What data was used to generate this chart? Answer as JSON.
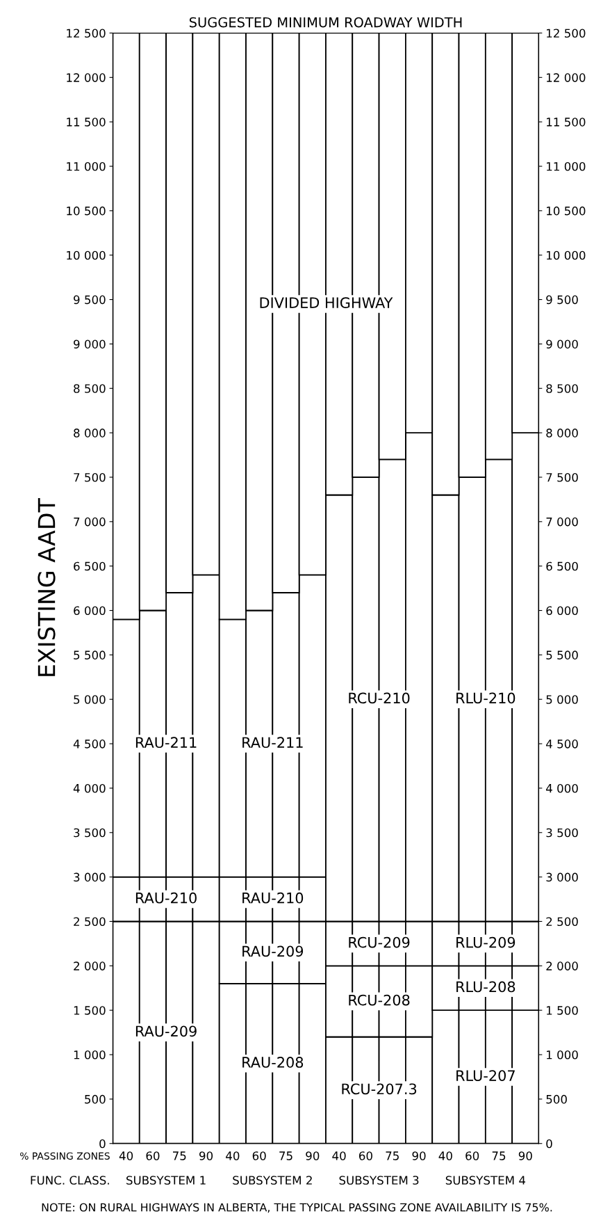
{
  "chart_data": {
    "type": "bar",
    "stacked": true,
    "title": "SUGGESTED MINIMUM ROADWAY WIDTH",
    "ylabel": "EXISTING AADT",
    "categories": [
      "40",
      "60",
      "75",
      "90",
      "40",
      "60",
      "75",
      "90",
      "40",
      "60",
      "75",
      "90",
      "40",
      "60",
      "75",
      "90"
    ],
    "series": [
      {
        "color": "#ffffff",
        "values": [
          2500,
          2500,
          2500,
          2500,
          1800,
          1800,
          1800,
          1800,
          1200,
          1200,
          1200,
          1200,
          1500,
          1500,
          1500,
          1500
        ],
        "value_labels": [
          null,
          "RAU-209",
          null,
          null,
          null,
          "RAU-208",
          null,
          null,
          null,
          "RCU-207.3",
          null,
          null,
          null,
          "RLU-207",
          null,
          null
        ]
      },
      {
        "color": "#ffffff",
        "values": [
          500,
          500,
          500,
          500,
          700,
          700,
          700,
          700,
          800,
          800,
          800,
          800,
          500,
          500,
          500,
          500
        ],
        "value_labels": [
          null,
          "RAU-210",
          null,
          null,
          null,
          "RAU-209",
          null,
          null,
          null,
          "RCU-208",
          null,
          null,
          null,
          "RLU-208",
          null,
          null
        ]
      },
      {
        "color": "#ffffff",
        "values": [
          2900,
          3000,
          3200,
          3400,
          500,
          500,
          500,
          500,
          500,
          500,
          500,
          500,
          500,
          500,
          500,
          500
        ],
        "value_labels": [
          null,
          "RAU-211",
          null,
          null,
          null,
          "RAU-210",
          null,
          null,
          null,
          "RCU-209",
          null,
          null,
          null,
          "RLU-209",
          null,
          null
        ]
      },
      {
        "color": "#ffffff",
        "values": [
          null,
          null,
          null,
          null,
          2900,
          3000,
          3200,
          3400,
          4800,
          5000,
          5200,
          5500,
          4800,
          5000,
          5200,
          5500
        ],
        "value_labels": [
          null,
          null,
          null,
          null,
          null,
          "RAU-211",
          null,
          null,
          null,
          "RCU-210",
          null,
          null,
          null,
          "RLU-210",
          null,
          null
        ]
      },
      {
        "color": "#ffffff",
        "values": [
          6600,
          6500,
          6300,
          6100,
          6600,
          6500,
          6300,
          6100,
          5200,
          5000,
          4800,
          4500,
          5200,
          5000,
          4800,
          4500
        ],
        "value_labels": [
          null,
          null,
          null,
          null,
          null,
          null,
          null,
          "DIVIDED HIGHWAY",
          null,
          null,
          null,
          null,
          null,
          null,
          null,
          null
        ]
      }
    ],
    "ylim": [
      0,
      12500
    ],
    "yticks": [
      0,
      500,
      {
        "value": 1000,
        "label": "1 000"
      },
      {
        "value": 1500,
        "label": "1 500"
      },
      {
        "value": 2000,
        "label": "2 000"
      },
      {
        "value": 2500,
        "label": "2 500"
      },
      {
        "value": 3000,
        "label": "3 000"
      },
      {
        "value": 3500,
        "label": "3 500"
      },
      {
        "value": 4000,
        "label": "4 000"
      },
      {
        "value": 4500,
        "label": "4 500"
      },
      {
        "value": 5000,
        "label": "5 000"
      },
      {
        "value": 5500,
        "label": "5 500"
      },
      {
        "value": 6000,
        "label": "6 000"
      },
      {
        "value": 6500,
        "label": "6 500"
      },
      {
        "value": 7000,
        "label": "7 000"
      },
      {
        "value": 7500,
        "label": "7 500"
      },
      {
        "value": 8000,
        "label": "8 000"
      },
      {
        "value": 8500,
        "label": "8 500"
      },
      {
        "value": 9000,
        "label": "9 000"
      },
      {
        "value": 9500,
        "label": "9 500"
      },
      {
        "value": 10000,
        "label": "10 000"
      },
      {
        "value": 10500,
        "label": "10 500"
      },
      {
        "value": 11000,
        "label": "11 000"
      },
      {
        "value": 11500,
        "label": "11 500"
      },
      {
        "value": 12000,
        "label": "12 000"
      },
      {
        "value": 12500,
        "label": "12 500"
      }
    ],
    "y2lim": [
      0,
      12500
    ],
    "y2ticks": [
      0,
      500,
      {
        "value": 1000,
        "label": "1 000"
      },
      {
        "value": 1500,
        "label": "1 500"
      },
      {
        "value": 2000,
        "label": "2 000"
      },
      {
        "value": 2500,
        "label": "2 500"
      },
      {
        "value": 3000,
        "label": "3 000"
      },
      {
        "value": 3500,
        "label": "3 500"
      },
      {
        "value": 4000,
        "label": "4 000"
      },
      {
        "value": 4500,
        "label": "4 500"
      },
      {
        "value": 5000,
        "label": "5 000"
      },
      {
        "value": 5500,
        "label": "5 500"
      },
      {
        "value": 6000,
        "label": "6 000"
      },
      {
        "value": 6500,
        "label": "6 500"
      },
      {
        "value": 7000,
        "label": "7 000"
      },
      {
        "value": 7500,
        "label": "7 500"
      },
      {
        "value": 8000,
        "label": "8 000"
      },
      {
        "value": 8500,
        "label": "8 500"
      },
      {
        "value": 9000,
        "label": "9 000"
      },
      {
        "value": 9500,
        "label": "9 500"
      },
      {
        "value": 10000,
        "label": "10 000"
      },
      {
        "value": 10500,
        "label": "10 500"
      },
      {
        "value": 11000,
        "label": "11 000"
      },
      {
        "value": 11500,
        "label": "11 500"
      },
      {
        "value": 12000,
        "label": "12 000"
      },
      {
        "value": 12500,
        "label": "12 500"
      }
    ],
    "annotations": [
      "% PASSING ZONES",
      "FUNC. CLASS.",
      "SUBSYSTEM 1",
      "SUBSYSTEM 2",
      "SUBSYSTEM 3",
      "SUBSYSTEM 4",
      "NOTE: ON RURAL HIGHWAYS IN ALBERTA, THE TYPICAL PASSING ZONE AVAILABILITY IS 75%."
    ],
    "grid": false,
    "legend": false
  }
}
